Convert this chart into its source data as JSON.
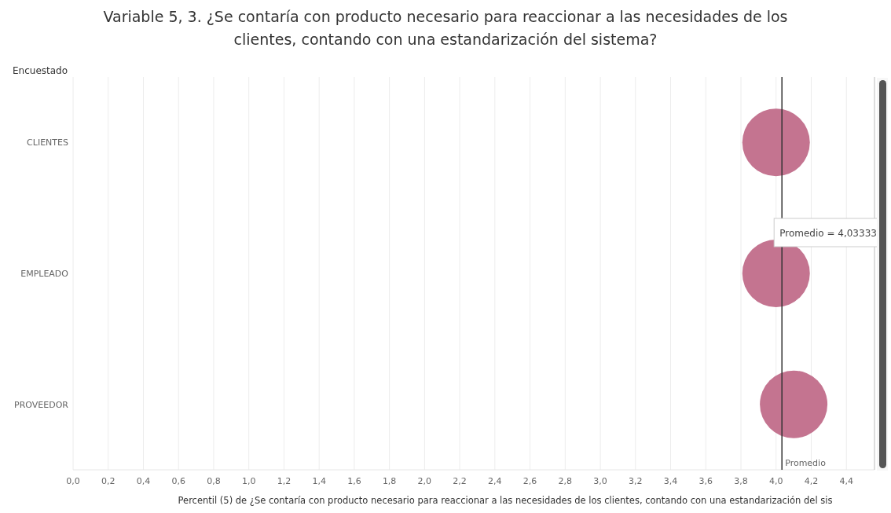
{
  "chart_data": {
    "type": "scatter",
    "orientation": "horizontal",
    "title": "Variable 5, 3. ¿Se contaría con producto necesario para reaccionar a las necesidades de los clientes, contando con una estandarización del sistema?",
    "xlabel": "Percentil (5) de ¿Se contaría con producto necesario para reaccionar a las necesidades de los clientes, contando con una estandarización del sis",
    "ylabel": "Encuestado",
    "categories": [
      "CLIENTES",
      "EMPLEADO",
      "PROVEEDOR"
    ],
    "series": [
      {
        "color": "#c47490",
        "values": [
          4.0,
          4.0,
          4.1
        ]
      }
    ],
    "marker": "circle",
    "grid": "x",
    "xlim": [
      0,
      4.56
    ],
    "xticks": [
      {
        "value": 0,
        "label": "0,0"
      },
      {
        "value": 0.2,
        "label": "0,2"
      },
      {
        "value": 0.4,
        "label": "0,4"
      },
      {
        "value": 0.6,
        "label": "0,6"
      },
      {
        "value": 0.8,
        "label": "0,8"
      },
      {
        "value": 1,
        "label": "1,0"
      },
      {
        "value": 1.2,
        "label": "1,2"
      },
      {
        "value": 1.4,
        "label": "1,4"
      },
      {
        "value": 1.6,
        "label": "1,6"
      },
      {
        "value": 1.8,
        "label": "1,8"
      },
      {
        "value": 2,
        "label": "2,0"
      },
      {
        "value": 2.2,
        "label": "2,2"
      },
      {
        "value": 2.4,
        "label": "2,4"
      },
      {
        "value": 2.6,
        "label": "2,6"
      },
      {
        "value": 2.8,
        "label": "2,8"
      },
      {
        "value": 3,
        "label": "3,0"
      },
      {
        "value": 3.2,
        "label": "3,2"
      },
      {
        "value": 3.4,
        "label": "3,4"
      },
      {
        "value": 3.6,
        "label": "3,6"
      },
      {
        "value": 3.8,
        "label": "3,8"
      },
      {
        "value": 4,
        "label": "4,0"
      },
      {
        "value": 4.2,
        "label": "4,2"
      },
      {
        "value": 4.4,
        "label": "4,4"
      }
    ],
    "ref_lines": [
      {
        "axis": "x",
        "value": 4.03333,
        "label": "Promedio",
        "color": "#333333"
      }
    ],
    "annotations": [
      {
        "text": "Promedio = 4,03333",
        "x": 4.03333
      }
    ]
  }
}
